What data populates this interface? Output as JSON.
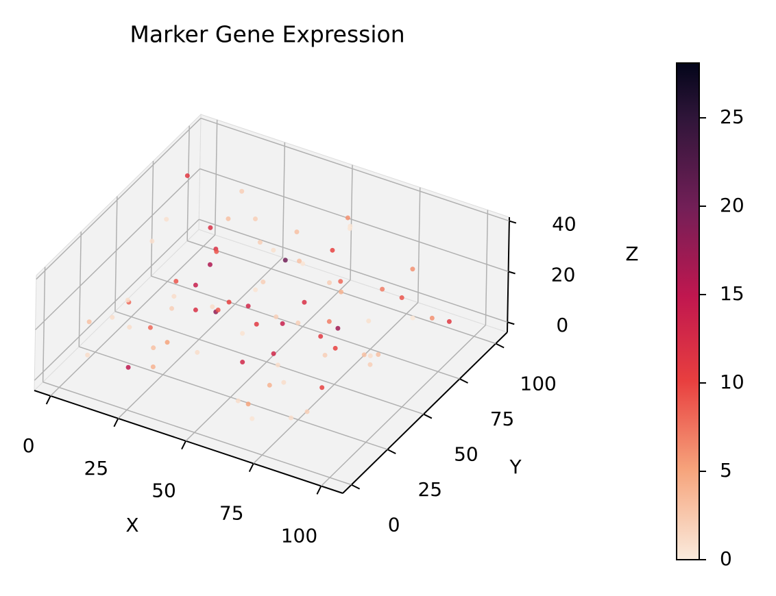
{
  "chart_data": {
    "type": "scatter3d",
    "title": "Marker Gene Expression",
    "xlabel": "X",
    "ylabel": "Y",
    "zlabel": "Z",
    "xlim": [
      -6,
      108
    ],
    "ylim": [
      -6,
      108
    ],
    "zlim": [
      -4,
      41.5
    ],
    "xticks": [
      0,
      25,
      50,
      75,
      100
    ],
    "yticks": [
      0,
      25,
      50,
      75,
      100
    ],
    "zticks": [
      0,
      20,
      40
    ],
    "grid": true,
    "x": [
      5,
      12,
      20,
      28,
      35,
      42,
      50,
      58,
      66,
      74,
      82,
      90,
      96,
      8,
      15,
      24,
      31,
      39,
      47,
      55,
      63,
      71,
      79,
      87,
      94,
      3,
      11,
      19,
      27,
      36,
      44,
      52,
      60,
      68,
      76,
      84,
      92,
      6,
      14,
      22,
      30,
      38,
      46,
      54,
      62,
      70,
      78,
      86,
      98,
      10,
      18,
      26,
      34,
      43,
      51,
      59,
      67,
      75,
      83,
      91,
      4,
      13,
      21,
      29,
      37,
      45,
      53,
      61,
      69,
      77,
      85,
      93,
      9,
      17,
      25,
      33,
      41,
      49,
      57,
      65
    ],
    "y": [
      10,
      25,
      40,
      55,
      70,
      85,
      95,
      15,
      30,
      45,
      60,
      75,
      90,
      5,
      20,
      35,
      50,
      65,
      80,
      92,
      8,
      22,
      38,
      52,
      68,
      82,
      96,
      12,
      28,
      42,
      58,
      72,
      88,
      3,
      18,
      33,
      48,
      62,
      78,
      94,
      6,
      24,
      44,
      64,
      84,
      14,
      34,
      54,
      74,
      90,
      2,
      16,
      30,
      46,
      60,
      76,
      98,
      10,
      26,
      40,
      56,
      70,
      86,
      20,
      36,
      52,
      66,
      80,
      4,
      48,
      12,
      62,
      30,
      72,
      18,
      86,
      40,
      58,
      92,
      26
    ],
    "z": [
      5,
      20,
      12,
      30,
      8,
      25,
      15,
      3,
      28,
      10,
      18,
      33,
      6,
      22,
      14,
      27,
      9,
      31,
      17,
      2,
      24,
      11,
      29,
      7,
      19,
      35,
      13,
      4,
      26,
      16,
      21,
      8,
      32,
      12,
      1,
      23,
      15,
      30,
      6,
      18,
      27,
      10,
      20,
      5,
      34,
      14,
      25,
      9,
      17,
      3,
      29,
      12,
      22,
      7,
      31,
      16,
      4,
      26,
      11,
      19,
      24,
      2,
      33,
      13,
      21,
      8,
      28,
      15,
      6,
      20,
      10,
      30,
      17,
      25,
      3,
      14,
      22,
      9,
      32,
      18
    ],
    "values": [
      1,
      8,
      2,
      12,
      0.5,
      3,
      10,
      1,
      14,
      2,
      0.8,
      6,
      11,
      3,
      1,
      9,
      18,
      2,
      0.5,
      4,
      13,
      1,
      7,
      2,
      0.3,
      11,
      3,
      15,
      1,
      9,
      2,
      12,
      0.5,
      5,
      1,
      10,
      3,
      0.7,
      16,
      2,
      8,
      1,
      13,
      2,
      0.4,
      4,
      11,
      1,
      6,
      9,
      1,
      3,
      12,
      0.6,
      20,
      2,
      7,
      1,
      10,
      3,
      0.9,
      14,
      2,
      5,
      1,
      11,
      3,
      8,
      0.5,
      17,
      2,
      9,
      1,
      12,
      4,
      0.8,
      10,
      2,
      6,
      13
    ],
    "clim": [
      0,
      28.1
    ],
    "cticks": [
      0,
      5,
      10,
      15,
      20,
      25
    ],
    "colormap": [
      [
        0,
        "#faebdd"
      ],
      [
        0.18,
        "#f6a47c"
      ],
      [
        0.36,
        "#e83f3f"
      ],
      [
        0.53,
        "#c0174f"
      ],
      [
        0.71,
        "#721f57"
      ],
      [
        0.89,
        "#2f1539"
      ],
      [
        1,
        "#03051a"
      ]
    ]
  }
}
